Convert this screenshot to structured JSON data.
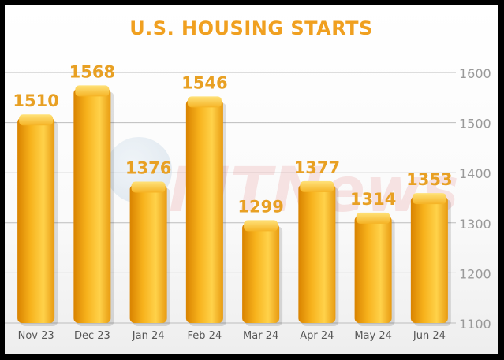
{
  "title": "U.S. HOUSING STARTS",
  "watermark_text": "MTNews",
  "colors": {
    "bar_light": "#ffd24a",
    "bar_mid": "#f7b21c",
    "bar_dark": "#d98300",
    "label": "#e8a023",
    "title": "#f0a020",
    "axis_text": "#9a9a9a",
    "grid": "#bdbdbd"
  },
  "chart_data": {
    "type": "bar",
    "title": "U.S. HOUSING STARTS",
    "categories": [
      "Nov 23",
      "Dec 23",
      "Jan 24",
      "Feb 24",
      "Mar 24",
      "Apr 24",
      "May 24",
      "Jun 24"
    ],
    "values": [
      1510,
      1568,
      1376,
      1546,
      1299,
      1377,
      1314,
      1353
    ],
    "data_labels": [
      "1510",
      "1568",
      "1376",
      "1546",
      "1299",
      "1377",
      "1314",
      "1353"
    ],
    "ylim": [
      1100,
      1600
    ],
    "yticks": [
      1100,
      1200,
      1300,
      1400,
      1500,
      1600
    ],
    "y_axis_side": "right",
    "grid": true,
    "legend": "none"
  }
}
